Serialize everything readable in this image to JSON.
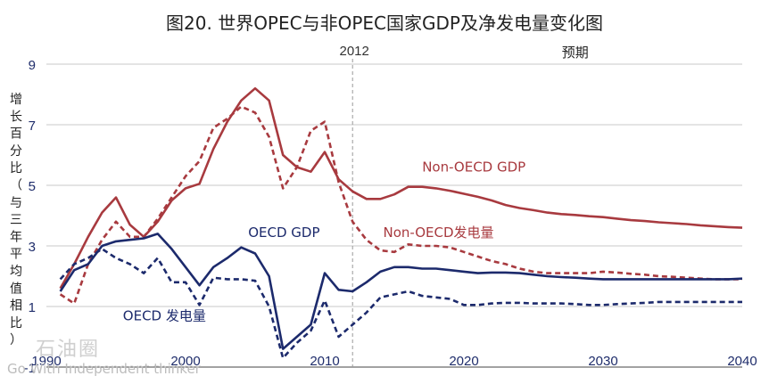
{
  "title": "图20. 世界OPEC与非OPEC国家GDP及净发电量变化图",
  "watermark": {
    "brand": "石油圈",
    "slogan": "Go With Independent thinker"
  },
  "chart_data": {
    "type": "line",
    "ylabel": "增长百分比（与三年平均值相比）",
    "xlim": [
      1990,
      2040
    ],
    "ylim": [
      -1,
      9
    ],
    "yticks": [
      -1,
      1,
      3,
      5,
      7,
      9
    ],
    "xticks": [
      1990,
      2000,
      2010,
      2020,
      2030,
      2040
    ],
    "annotations": [
      {
        "text": "2012",
        "x": 2012
      },
      {
        "text": "预期",
        "x": 2028
      }
    ],
    "series": [
      {
        "name": "Non-OECD GDP",
        "color": "#a83a3f",
        "style": "solid",
        "label_at": [
          2017,
          5.45
        ],
        "x": [
          1991,
          1992,
          1993,
          1994,
          1995,
          1996,
          1997,
          1998,
          1999,
          2000,
          2001,
          2002,
          2003,
          2004,
          2005,
          2006,
          2007,
          2008,
          2009,
          2010,
          2011,
          2012,
          2013,
          2014,
          2015,
          2016,
          2017,
          2018,
          2019,
          2020,
          2021,
          2022,
          2023,
          2024,
          2025,
          2026,
          2027,
          2028,
          2029,
          2030,
          2031,
          2032,
          2033,
          2034,
          2035,
          2036,
          2037,
          2038,
          2039,
          2040
        ],
        "values": [
          1.6,
          2.4,
          3.3,
          4.1,
          4.6,
          3.7,
          3.3,
          3.8,
          4.5,
          4.9,
          5.05,
          6.2,
          7.1,
          7.8,
          8.2,
          7.8,
          6.0,
          5.6,
          5.45,
          6.1,
          5.2,
          4.8,
          4.55,
          4.55,
          4.7,
          4.95,
          4.95,
          4.9,
          4.82,
          4.72,
          4.62,
          4.5,
          4.35,
          4.25,
          4.18,
          4.1,
          4.05,
          4.02,
          3.98,
          3.95,
          3.9,
          3.85,
          3.82,
          3.78,
          3.75,
          3.72,
          3.68,
          3.65,
          3.62,
          3.6
        ]
      },
      {
        "name": "Non-OECD发电量",
        "color": "#a83a3f",
        "style": "dashed",
        "label_at": [
          2014.2,
          3.3
        ],
        "x": [
          1991,
          1992,
          1993,
          1994,
          1995,
          1996,
          1997,
          1998,
          1999,
          2000,
          2001,
          2002,
          2003,
          2004,
          2005,
          2006,
          2007,
          2008,
          2009,
          2010,
          2011,
          2012,
          2013,
          2014,
          2015,
          2016,
          2017,
          2018,
          2019,
          2020,
          2021,
          2022,
          2023,
          2024,
          2025,
          2026,
          2027,
          2028,
          2029,
          2030,
          2031,
          2032,
          2033,
          2034,
          2035,
          2036,
          2037,
          2038,
          2039,
          2040
        ],
        "values": [
          1.4,
          1.1,
          2.4,
          3.2,
          3.8,
          3.3,
          3.3,
          3.9,
          4.6,
          5.3,
          5.8,
          6.9,
          7.2,
          7.6,
          7.4,
          6.6,
          4.9,
          5.6,
          6.8,
          7.1,
          5.1,
          3.8,
          3.2,
          2.85,
          2.8,
          3.05,
          3.0,
          3.0,
          2.95,
          2.8,
          2.65,
          2.5,
          2.4,
          2.25,
          2.15,
          2.1,
          2.1,
          2.1,
          2.1,
          2.15,
          2.12,
          2.08,
          2.05,
          2.0,
          1.98,
          1.95,
          1.92,
          1.9,
          1.9,
          1.9
        ]
      },
      {
        "name": "OECD GDP",
        "color": "#1c2a6c",
        "style": "solid",
        "label_at": [
          2004.5,
          3.3
        ],
        "x": [
          1991,
          1992,
          1993,
          1994,
          1995,
          1996,
          1997,
          1998,
          1999,
          2000,
          2001,
          2002,
          2003,
          2004,
          2005,
          2006,
          2007,
          2008,
          2009,
          2010,
          2011,
          2012,
          2013,
          2014,
          2015,
          2016,
          2017,
          2018,
          2019,
          2020,
          2021,
          2022,
          2023,
          2024,
          2025,
          2026,
          2027,
          2028,
          2029,
          2030,
          2031,
          2032,
          2033,
          2034,
          2035,
          2036,
          2037,
          2038,
          2039,
          2040
        ],
        "values": [
          1.5,
          2.2,
          2.4,
          3.0,
          3.15,
          3.2,
          3.25,
          3.4,
          2.9,
          2.3,
          1.7,
          2.3,
          2.6,
          2.95,
          2.75,
          2.0,
          -0.4,
          0.0,
          0.4,
          2.1,
          1.55,
          1.5,
          1.8,
          2.15,
          2.3,
          2.3,
          2.25,
          2.25,
          2.2,
          2.15,
          2.1,
          2.12,
          2.12,
          2.1,
          2.05,
          2.0,
          1.97,
          1.95,
          1.92,
          1.9,
          1.9,
          1.9,
          1.9,
          1.9,
          1.9,
          1.9,
          1.9,
          1.9,
          1.9,
          1.92
        ]
      },
      {
        "name": "OECD 发电量",
        "color": "#1c2a6c",
        "style": "dashed",
        "label_at": [
          1995.5,
          0.55
        ],
        "x": [
          1991,
          1992,
          1993,
          1994,
          1995,
          1996,
          1997,
          1998,
          1999,
          2000,
          2001,
          2002,
          2003,
          2004,
          2005,
          2006,
          2007,
          2008,
          2009,
          2010,
          2011,
          2012,
          2013,
          2014,
          2015,
          2016,
          2017,
          2018,
          2019,
          2020,
          2021,
          2022,
          2023,
          2024,
          2025,
          2026,
          2027,
          2028,
          2029,
          2030,
          2031,
          2032,
          2033,
          2034,
          2035,
          2036,
          2037,
          2038,
          2039,
          2040
        ],
        "values": [
          1.9,
          2.4,
          2.6,
          2.9,
          2.6,
          2.4,
          2.1,
          2.6,
          1.8,
          1.8,
          1.05,
          1.95,
          1.9,
          1.9,
          1.85,
          1.0,
          -0.7,
          -0.2,
          0.2,
          1.2,
          0.0,
          0.4,
          0.8,
          1.3,
          1.4,
          1.5,
          1.35,
          1.3,
          1.25,
          1.05,
          1.05,
          1.1,
          1.12,
          1.12,
          1.1,
          1.1,
          1.1,
          1.08,
          1.05,
          1.05,
          1.08,
          1.1,
          1.12,
          1.15,
          1.15,
          1.15,
          1.15,
          1.15,
          1.15,
          1.15
        ]
      }
    ]
  }
}
